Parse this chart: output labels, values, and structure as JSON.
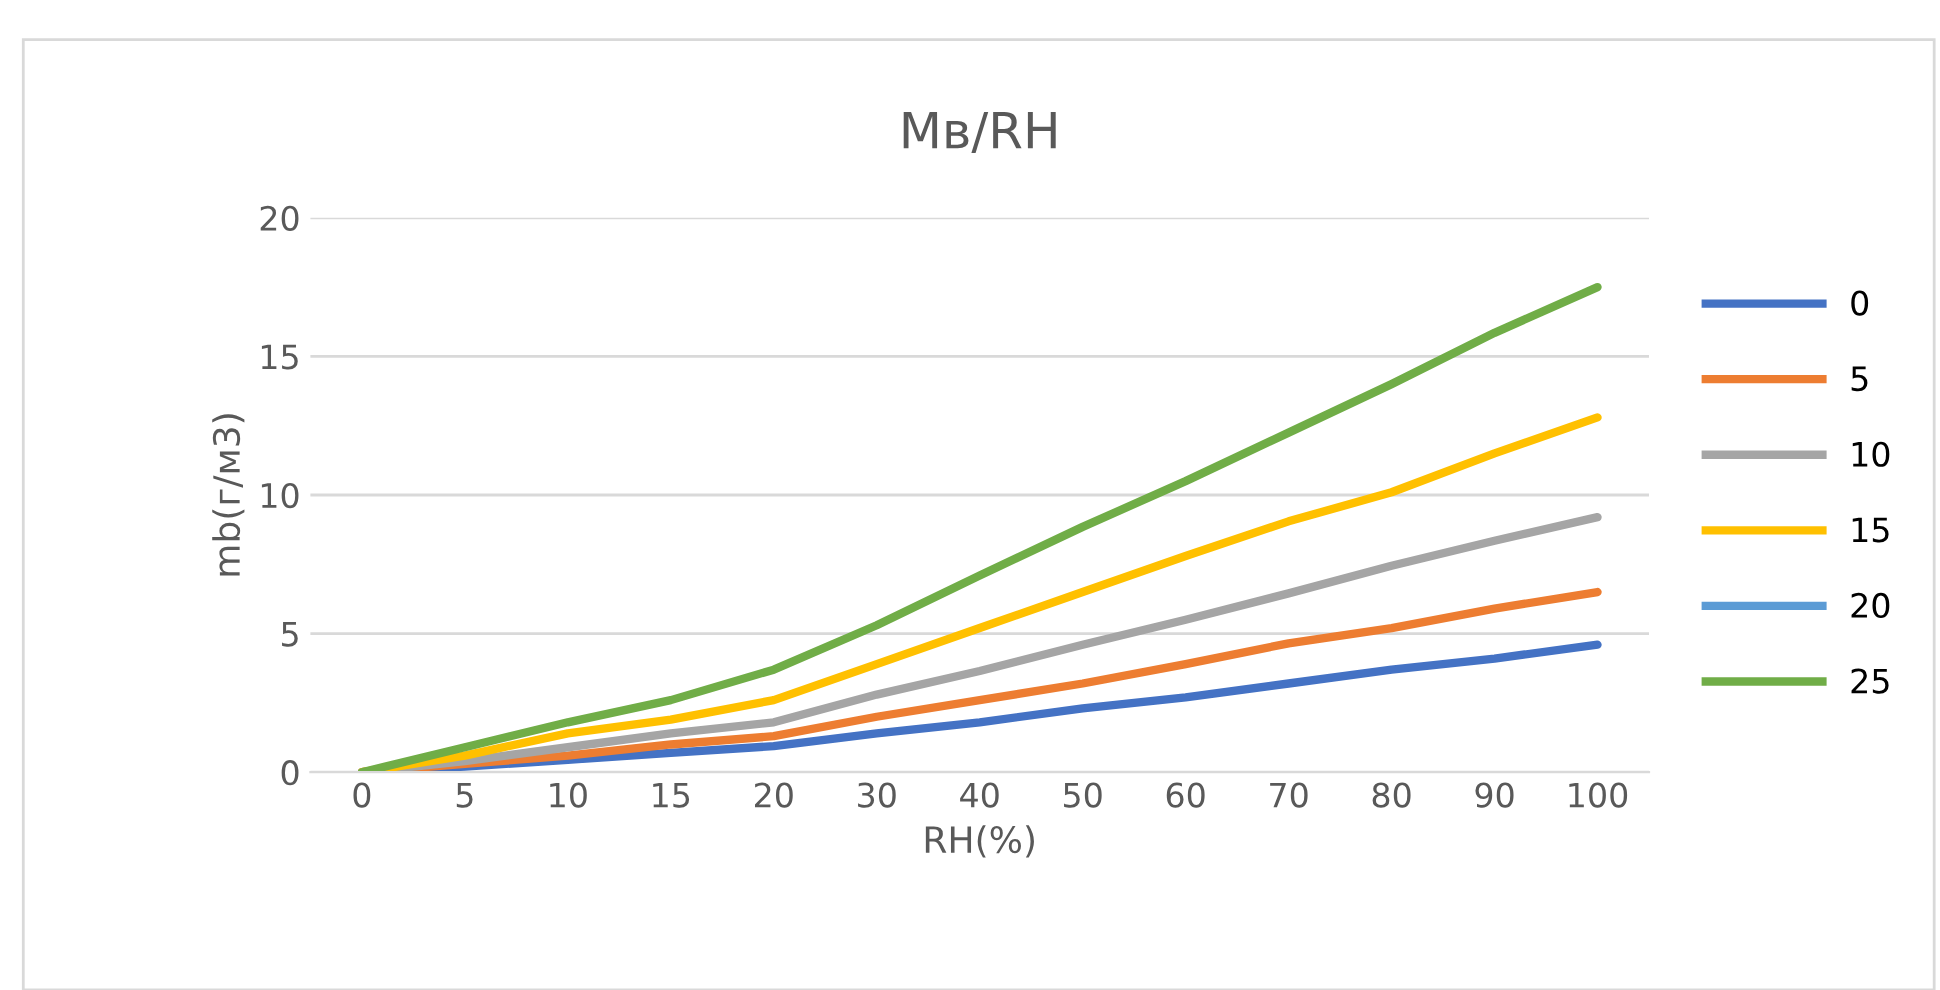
{
  "chart_data": {
    "type": "line",
    "title": "Mв/RH",
    "xlabel": "RH(%)",
    "ylabel": "mb(г/м3)",
    "categories": [
      "0",
      "5",
      "10",
      "15",
      "20",
      "30",
      "40",
      "50",
      "60",
      "70",
      "80",
      "90",
      "100"
    ],
    "ylim": [
      0,
      20
    ],
    "yticks": [
      0,
      5,
      10,
      15,
      20
    ],
    "grid": "y",
    "legend": "right",
    "marker": "none",
    "line_style": "solid",
    "series": [
      {
        "name": "0",
        "color": "#4472c4",
        "values": [
          0,
          0.2,
          0.45,
          0.7,
          0.94,
          1.4,
          1.8,
          2.3,
          2.7,
          3.2,
          3.7,
          4.1,
          4.6
        ]
      },
      {
        "name": "5",
        "color": "#ed7d31",
        "values": [
          0,
          0.3,
          0.6,
          1.0,
          1.3,
          2.0,
          2.6,
          3.2,
          3.9,
          4.65,
          5.2,
          5.9,
          6.5
        ]
      },
      {
        "name": "10",
        "color": "#a5a5a5",
        "values": [
          0,
          0.4,
          0.9,
          1.4,
          1.8,
          2.8,
          3.65,
          4.6,
          5.5,
          6.45,
          7.45,
          8.35,
          9.2
        ]
      },
      {
        "name": "15",
        "color": "#ffc000",
        "values": [
          0,
          0.6,
          1.4,
          1.9,
          2.6,
          3.9,
          5.2,
          6.5,
          7.8,
          9.05,
          10.1,
          11.5,
          12.8
        ]
      },
      {
        "name": "20",
        "color": "#5b9bd5",
        "values": [
          null,
          null,
          null,
          null,
          null,
          null,
          null,
          null,
          null,
          null,
          null,
          null,
          null
        ]
      },
      {
        "name": "25",
        "color": "#70ad47",
        "values": [
          0,
          0.9,
          1.8,
          2.6,
          3.7,
          5.3,
          7.1,
          8.85,
          10.5,
          12.25,
          14.0,
          15.85,
          17.5
        ]
      }
    ]
  }
}
